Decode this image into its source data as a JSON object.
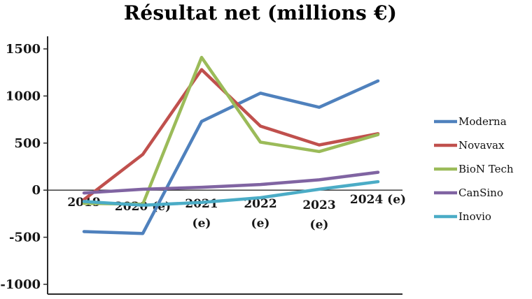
{
  "chart_data": {
    "type": "line",
    "title": "Résultat net (millions €)",
    "categories": [
      "2019",
      "2020 (e)",
      "2021 (e)",
      "2022 (e)",
      "2023 (e)",
      "2024 (e)"
    ],
    "series": [
      {
        "name": "Moderna",
        "color": "#4F81BD",
        "values": [
          -440,
          -460,
          730,
          1030,
          880,
          1160
        ]
      },
      {
        "name": "Novavax",
        "color": "#C0504D",
        "values": [
          -100,
          380,
          1280,
          680,
          480,
          600
        ]
      },
      {
        "name": "BioN Tech",
        "color": "#9BBB59",
        "values": [
          -140,
          -150,
          1410,
          510,
          410,
          590
        ]
      },
      {
        "name": "CanSino",
        "color": "#8064A2",
        "values": [
          -30,
          10,
          30,
          60,
          110,
          190
        ]
      },
      {
        "name": "Inovio",
        "color": "#4BACC6",
        "values": [
          -120,
          -160,
          -130,
          -80,
          10,
          90
        ]
      }
    ],
    "ylim": [
      -1000,
      1500
    ],
    "yticks": [
      -1000,
      -500,
      0,
      500,
      1000,
      1500
    ],
    "legend_position": "right",
    "grid": false,
    "axis_color": "#2b2b2b"
  }
}
